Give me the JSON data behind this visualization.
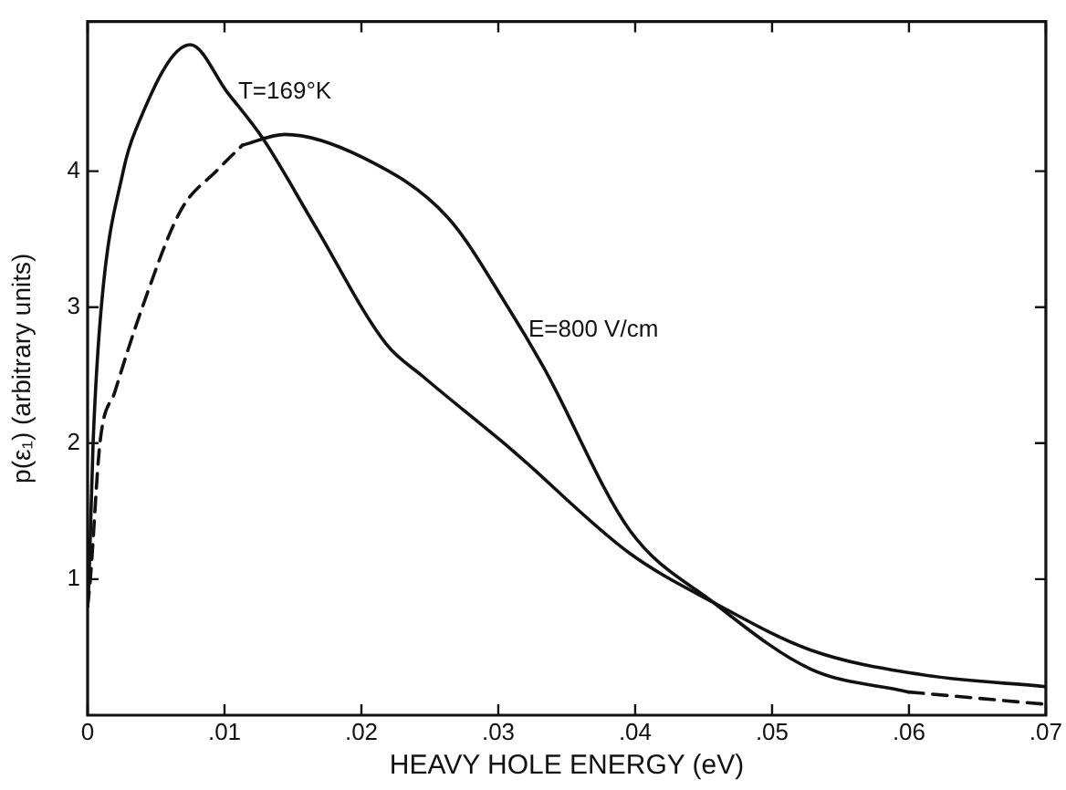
{
  "chart_data": {
    "type": "line",
    "xlabel": "HEAVY HOLE ENERGY (eV)",
    "ylabel": "p(ε₁) (arbitrary units)",
    "xlim": [
      0,
      0.07
    ],
    "ylim": [
      0,
      5.1
    ],
    "xticks": [
      0,
      {
        "value": 0.01,
        "label": ".01"
      },
      {
        "value": 0.02,
        "label": ".02"
      },
      {
        "value": 0.03,
        "label": ".03"
      },
      {
        "value": 0.04,
        "label": ".04"
      },
      {
        "value": 0.05,
        "label": ".05"
      },
      {
        "value": 0.06,
        "label": ".06"
      },
      {
        "value": 0.07,
        "label": ".07"
      }
    ],
    "yticks": [
      1,
      2,
      3,
      4
    ],
    "grid": false,
    "legend": false,
    "marker": "none",
    "series": [
      {
        "color": "#111111",
        "line_style": "solid",
        "x": [
          0,
          0.0001,
          0.0004,
          0.001,
          0.0026,
          0.0035,
          0.0075,
          0.0102,
          0.0128,
          0.0166,
          0.0218,
          0.0245,
          0.031,
          0.0396,
          0.0457,
          0.0528,
          0.0608,
          0.07
        ],
        "values": [
          0.8,
          1.0,
          2.0,
          3.0,
          4.0,
          4.3,
          4.93,
          4.58,
          4.24,
          3.6,
          2.73,
          2.49,
          1.95,
          1.19,
          0.83,
          0.48,
          0.3,
          0.21
        ]
      },
      {
        "color": "#111111",
        "line_style": "dashed",
        "x": [
          0,
          0.0002,
          0.0009,
          0.002,
          0.004,
          0.0068,
          0.0095,
          0.0113
        ],
        "values": [
          0.8,
          1.0,
          2.0,
          2.38,
          3.0,
          3.71,
          4.01,
          4.19
        ]
      },
      {
        "color": "#111111",
        "line_style": "solid",
        "x": [
          0.0113,
          0.0144,
          0.0201,
          0.0263,
          0.0307,
          0.0333,
          0.0396,
          0.0457,
          0.0528,
          0.06
        ],
        "values": [
          4.19,
          4.27,
          4.1,
          3.66,
          3.0,
          2.56,
          1.36,
          0.83,
          0.34,
          0.17
        ]
      },
      {
        "color": "#111111",
        "line_style": "dashed",
        "x": [
          0.06,
          0.07
        ],
        "values": [
          0.17,
          0.08
        ]
      }
    ],
    "annotations": [
      {
        "text": "T=169°K",
        "x": 0.0102,
        "y": 4.58
      },
      {
        "text": "E=800 V/cm",
        "x": 0.0314,
        "y": 2.83
      }
    ]
  }
}
